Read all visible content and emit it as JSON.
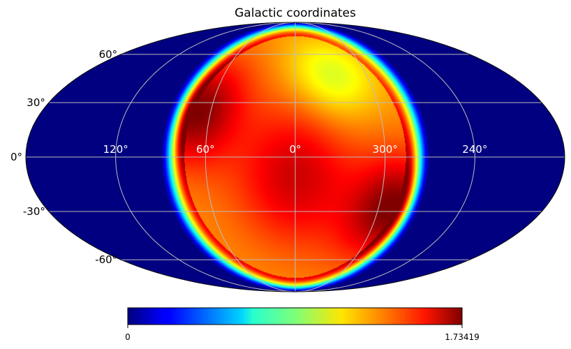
{
  "chart_data": {
    "type": "heatmap",
    "projection": "mollweide",
    "title": "Galactic coordinates",
    "colormap": "jet",
    "colorbar": {
      "min": 0,
      "max": 1.73419,
      "min_label": "0",
      "max_label": "1.73419"
    },
    "graticule": {
      "lat_lines": [
        60,
        30,
        0,
        -30,
        -60
      ],
      "lat_labels": [
        "60°",
        "30°",
        "0°",
        "-30°",
        "-60°"
      ],
      "lon_lines": [
        120,
        60,
        0,
        300,
        240
      ],
      "lon_labels": [
        "120°",
        "60°",
        "0°",
        "300°",
        "240°"
      ]
    },
    "features": [
      {
        "name": "disc",
        "center_lon": 0,
        "center_lat": 0,
        "angular_radius_deg": 90,
        "edge_value": 0.55,
        "interior_value": 1.28
      },
      {
        "name": "hot-arc-upper-left",
        "center_lon": 70,
        "center_lat": 25,
        "value": 1.73
      },
      {
        "name": "hot-arc-lower-right",
        "center_lon": 290,
        "center_lat": -28,
        "value": 1.73
      },
      {
        "name": "core",
        "center_lon": 0,
        "center_lat": -10,
        "value": 1.6
      },
      {
        "name": "cool-patch-upper-right",
        "center_lon": 330,
        "center_lat": 45,
        "value": 1.0
      }
    ],
    "background_value": 0
  }
}
